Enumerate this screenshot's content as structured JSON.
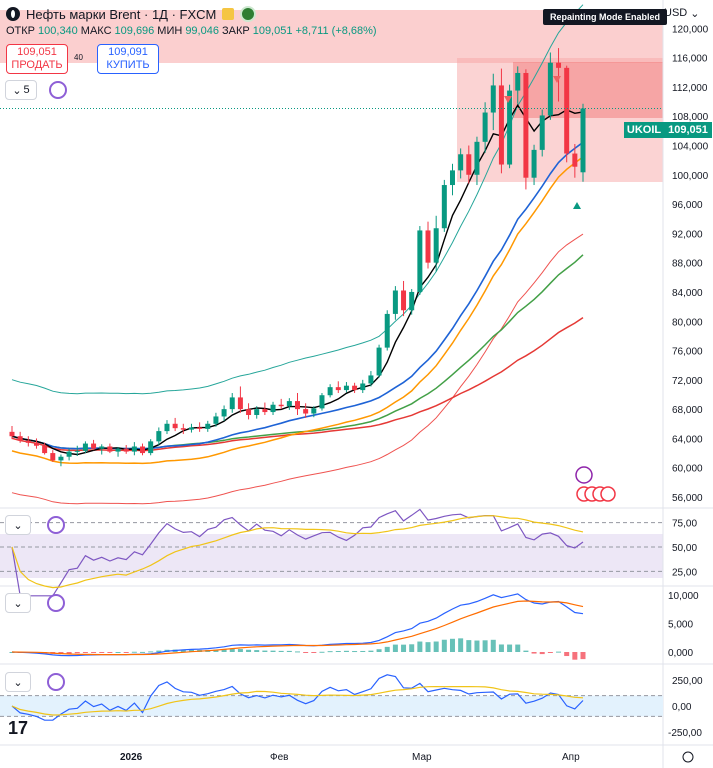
{
  "header": {
    "symbol_title": "Нефть марки Brent · 1Д · FXCM",
    "ohlc": {
      "open_label": "ОТКР",
      "open": "100,340",
      "high_label": "МАКС",
      "high": "109,696",
      "low_label": "МИН",
      "low": "99,046",
      "close_label": "ЗАКР",
      "close": "109,051",
      "change": "+8,711 (+8,68%)"
    }
  },
  "trade": {
    "sell_price": "109,051",
    "sell_label": "ПРОДАТЬ",
    "spread": "40",
    "buy_price": "109,091",
    "buy_label": "КУПИТЬ"
  },
  "indicator_count": "5",
  "currency": "USD",
  "repaint_banner": "Repainting Mode Enabled",
  "price_tag": {
    "symbol": "UKOIL",
    "price": "109,051"
  },
  "colors": {
    "up": "#089981",
    "down": "#f23645",
    "accent": "#2962ff",
    "rsi": "#7e57c2"
  },
  "price_axis": {
    "labels": [
      "120,000",
      "116,000",
      "112,000",
      "108,000",
      "104,000",
      "100,000",
      "96,000",
      "92,000",
      "88,000",
      "84,000",
      "80,000",
      "76,000",
      "72,000",
      "68,000",
      "64,000",
      "60,000",
      "56,000"
    ],
    "min": 54.5,
    "max": 122.5
  },
  "rsi_axis": [
    "75,00",
    "50,00",
    "25,00"
  ],
  "macd_axis": [
    "10,000",
    "5,000",
    "0,000"
  ],
  "cci_axis": [
    "250,00",
    "0,00",
    "-250,00"
  ],
  "time_axis": [
    "2026",
    "Фев",
    "Мар",
    "Апр"
  ],
  "chart_data": {
    "type": "candlestick",
    "ohlc": [
      [
        64.9,
        65.7,
        63.9,
        64.3
      ],
      [
        64.3,
        64.9,
        63.4,
        63.7
      ],
      [
        63.7,
        64.3,
        62.9,
        63.4
      ],
      [
        63.4,
        64.0,
        62.6,
        63.0
      ],
      [
        63.0,
        63.4,
        61.8,
        62.0
      ],
      [
        62.0,
        62.4,
        60.8,
        61.0
      ],
      [
        61.0,
        61.8,
        60.2,
        61.5
      ],
      [
        61.5,
        62.6,
        61.0,
        62.2
      ],
      [
        62.2,
        63.0,
        61.6,
        62.3
      ],
      [
        62.3,
        63.6,
        62.0,
        63.3
      ],
      [
        63.3,
        63.8,
        62.4,
        62.6
      ],
      [
        62.6,
        63.2,
        61.8,
        62.9
      ],
      [
        62.9,
        63.3,
        62.0,
        62.2
      ],
      [
        62.2,
        62.8,
        61.5,
        62.6
      ],
      [
        62.6,
        63.1,
        61.9,
        62.2
      ],
      [
        62.2,
        63.5,
        61.7,
        62.9
      ],
      [
        62.9,
        63.3,
        61.7,
        62.0
      ],
      [
        62.0,
        63.9,
        61.7,
        63.6
      ],
      [
        63.6,
        65.5,
        63.1,
        65.0
      ],
      [
        65.0,
        66.5,
        64.6,
        66.0
      ],
      [
        66.0,
        66.8,
        65.0,
        65.4
      ],
      [
        65.4,
        66.0,
        64.6,
        65.2
      ],
      [
        65.2,
        66.0,
        64.8,
        65.5
      ],
      [
        65.5,
        66.2,
        64.9,
        65.3
      ],
      [
        65.3,
        66.4,
        64.9,
        66.0
      ],
      [
        66.0,
        67.5,
        65.6,
        67.0
      ],
      [
        67.0,
        68.5,
        66.4,
        68.0
      ],
      [
        68.0,
        70.2,
        67.5,
        69.6
      ],
      [
        69.6,
        71.1,
        67.5,
        68.0
      ],
      [
        68.0,
        68.8,
        66.6,
        67.2
      ],
      [
        67.2,
        68.4,
        66.7,
        68.0
      ],
      [
        68.0,
        68.9,
        67.2,
        67.6
      ],
      [
        67.6,
        69.0,
        67.2,
        68.6
      ],
      [
        68.6,
        69.4,
        68.0,
        68.4
      ],
      [
        68.4,
        69.5,
        67.9,
        69.1
      ],
      [
        69.1,
        70.2,
        67.2,
        68.0
      ],
      [
        68.0,
        68.8,
        66.8,
        67.4
      ],
      [
        67.4,
        68.4,
        66.9,
        68.1
      ],
      [
        68.1,
        70.2,
        67.8,
        69.9
      ],
      [
        69.9,
        71.4,
        69.6,
        71.0
      ],
      [
        71.0,
        71.8,
        70.2,
        70.6
      ],
      [
        70.6,
        71.7,
        70.3,
        71.2
      ],
      [
        71.2,
        71.6,
        70.2,
        70.6
      ],
      [
        70.6,
        72.0,
        70.2,
        71.5
      ],
      [
        71.5,
        73.2,
        71.1,
        72.6
      ],
      [
        72.6,
        76.8,
        72.3,
        76.4
      ],
      [
        76.4,
        81.5,
        76.0,
        81.0
      ],
      [
        81.0,
        84.8,
        80.2,
        84.2
      ],
      [
        84.2,
        85.5,
        80.7,
        81.5
      ],
      [
        81.5,
        84.4,
        80.9,
        84.0
      ],
      [
        84.0,
        93.0,
        83.6,
        92.4
      ],
      [
        92.4,
        93.6,
        87.2,
        88.0
      ],
      [
        88.0,
        94.4,
        86.8,
        92.7
      ],
      [
        92.7,
        99.3,
        92.2,
        98.6
      ],
      [
        98.6,
        101.5,
        97.2,
        100.6
      ],
      [
        100.6,
        103.6,
        99.5,
        102.8
      ],
      [
        102.8,
        104.0,
        98.8,
        100.0
      ],
      [
        100.0,
        105.2,
        98.6,
        104.5
      ],
      [
        104.5,
        109.9,
        103.0,
        108.5
      ],
      [
        108.5,
        113.8,
        106.1,
        112.2
      ],
      [
        112.2,
        114.5,
        100.2,
        101.4
      ],
      [
        101.4,
        112.3,
        100.9,
        111.5
      ],
      [
        111.5,
        114.8,
        109.7,
        113.9
      ],
      [
        113.9,
        114.4,
        98.0,
        99.6
      ],
      [
        99.6,
        104.1,
        98.6,
        103.4
      ],
      [
        103.4,
        108.9,
        102.5,
        108.1
      ],
      [
        108.1,
        116.7,
        107.5,
        115.3
      ],
      [
        115.3,
        117.3,
        110.0,
        114.6
      ],
      [
        114.6,
        114.9,
        101.7,
        102.9
      ],
      [
        102.9,
        104.2,
        99.6,
        101.1
      ],
      [
        100.34,
        109.696,
        99.046,
        109.051
      ]
    ]
  }
}
